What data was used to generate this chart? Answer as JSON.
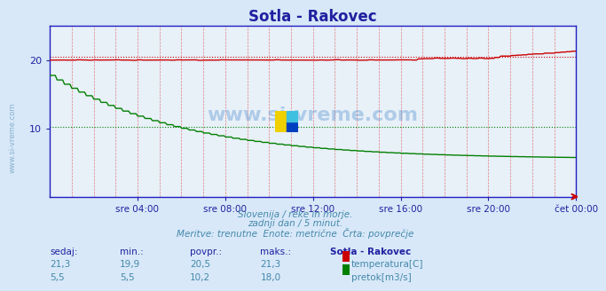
{
  "title": "Sotla - Rakovec",
  "bg_color": "#d8e8f8",
  "plot_bg_color": "#e8f0f8",
  "grid_color_major": "#c0c0c0",
  "grid_color_minor": "#e0b0b0",
  "title_color": "#2020a0",
  "axis_color": "#2020a0",
  "tick_color": "#2020a0",
  "temp_color": "#cc0000",
  "flow_color": "#008000",
  "avg_line_color_temp": "#cc0000",
  "avg_line_color_flow": "#008000",
  "border_color": "#2020a0",
  "x_arrow_color": "#cc0000",
  "subtitle_lines": [
    "Slovenija / reke in morje.",
    "zadnji dan / 5 minut.",
    "Meritve: trenutne  Enote: metrične  Črta: povprečje"
  ],
  "table_headers": [
    "sedaj:",
    "min.:",
    "povpr.:",
    "maks.:",
    "Sotla - Rakovec"
  ],
  "table_row1": [
    "21,3",
    "19,9",
    "20,5",
    "21,3",
    "temperatura[C]"
  ],
  "table_row2": [
    "5,5",
    "5,5",
    "10,2",
    "18,0",
    "pretok[m3/s]"
  ],
  "temp_sedaj": 21.3,
  "temp_min": 19.9,
  "temp_povpr": 20.5,
  "temp_maks": 21.3,
  "flow_sedaj": 5.5,
  "flow_min": 5.5,
  "flow_povpr": 10.2,
  "flow_maks": 18.0,
  "ylim": [
    0,
    25
  ],
  "yticks": [
    10,
    20
  ],
  "xlabel": "",
  "xtick_labels": [
    "sre 04:00",
    "sre 08:00",
    "sre 12:00",
    "sre 16:00",
    "sre 20:00",
    "čet 00:00"
  ],
  "n_points": 288,
  "watermark": "www.si-vreme.com"
}
